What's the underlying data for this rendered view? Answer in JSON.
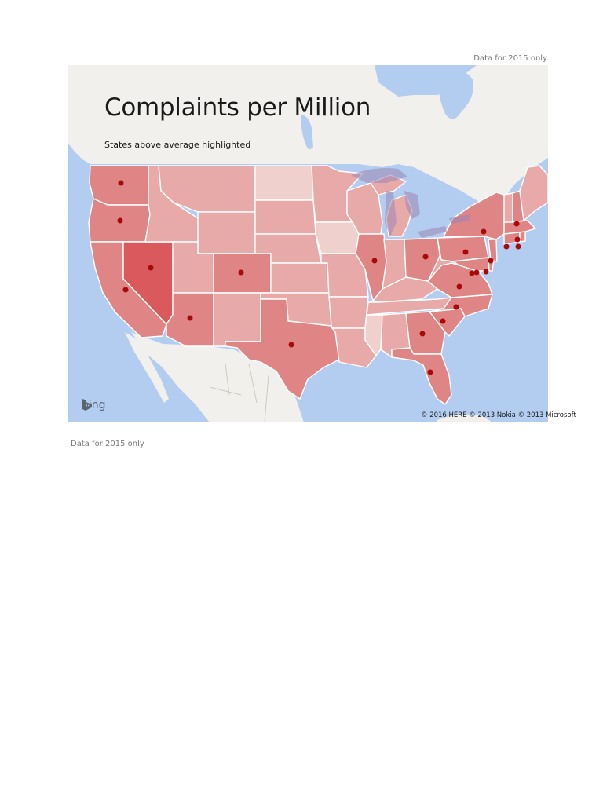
{
  "notes": {
    "top": "Data for 2015 only",
    "bottom": "Data for 2015 only"
  },
  "map": {
    "title": "Complaints per Million",
    "subtitle": "States above average highlighted",
    "provider_logo": {
      "icon": "bing-b-icon",
      "label": "bing"
    },
    "attribution": "© 2016 HERE  © 2013 Nokia  © 2013 Microsoft",
    "colors": {
      "water": "#b3cdf0",
      "land": "#f1f0ec",
      "highlight_strong": "#d9595d",
      "highlight": "#e08585",
      "normal": "#e8a9a9",
      "light": "#efd0cc",
      "marker": "#a80a0a"
    },
    "highlighted_states": [
      "WA",
      "OR",
      "CA",
      "NV",
      "AZ",
      "CO",
      "TX",
      "IL",
      "OH",
      "PA",
      "NY",
      "VA",
      "MD",
      "DE",
      "NJ",
      "CT",
      "RI",
      "MA",
      "NH",
      "NC",
      "SC",
      "GA",
      "FL"
    ]
  }
}
